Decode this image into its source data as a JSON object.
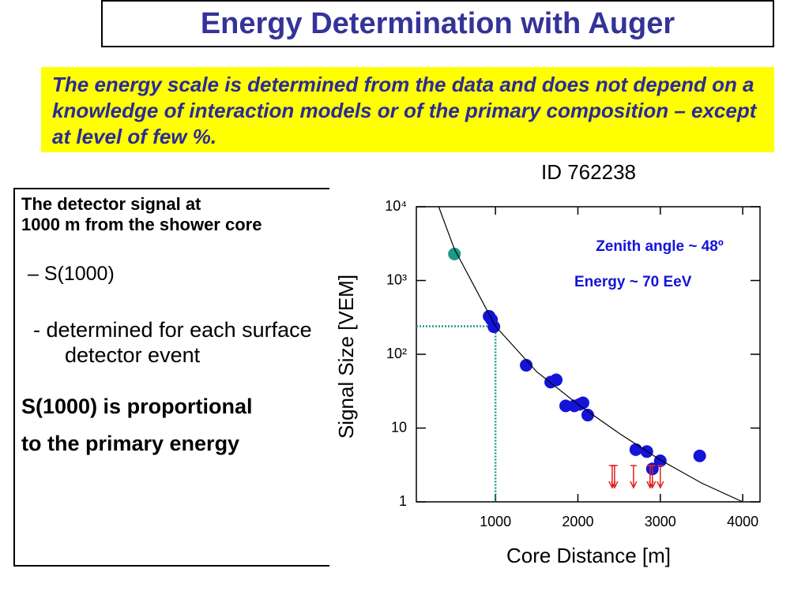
{
  "title": "Energy Determination with Auger",
  "highlight": "The energy scale is determined from the data and does not depend on a knowledge of interaction models or of the primary composition – except at level of few %.",
  "detector_box": {
    "items": [
      "The detector signal at",
      "1000 m from the shower core",
      "– S(1000)",
      "-  determined for each surface detector event",
      "S(1000) is proportional",
      "to the primary energy"
    ]
  },
  "chart_data": {
    "type": "scatter",
    "title": "ID 762238",
    "x_label": "Core Distance [m]",
    "y_label": "Signal Size [VEM]",
    "annotations": [
      "Zenith angle ~ 48º",
      "Energy ~ 70 EeV"
    ],
    "xlim": [
      40,
      4210
    ],
    "xticks": [
      1000,
      2000,
      3000,
      4000
    ],
    "ylim": [
      1,
      10000
    ],
    "ylog": true,
    "yticks": [
      {
        "value": 10000,
        "label": "10⁴"
      },
      {
        "value": 1000,
        "label": "10³"
      },
      {
        "value": 100,
        "label": "10²"
      },
      10,
      1
    ],
    "series": [
      {
        "color": "#1a9a8a",
        "marker": "circle",
        "x": [
          502
        ],
        "values": [
          2290
        ]
      },
      {
        "color": "#1414d8",
        "marker": "circle",
        "x": [
          923,
          952,
          981,
          1373,
          1670,
          1737,
          1852,
          1957,
          2024,
          2062,
          2120,
          2703,
          2837,
          2904,
          3000,
          3478
        ],
        "values": [
          327,
          295,
          236,
          71,
          42,
          45,
          20,
          20,
          21,
          22,
          15,
          5.1,
          4.8,
          2.8,
          3.6,
          4.2
        ]
      },
      {
        "color": "#e02020",
        "marker": "arrow",
        "x": [
          2416,
          2445,
          2675,
          2876,
          2904,
          3000
        ],
        "values": [
          3.1,
          3.1,
          3.1,
          3.1,
          3.1,
          3.1
        ]
      },
      {
        "color": "#000000",
        "marker": "line",
        "x": [
          311,
          500,
          1000,
          1500,
          2000,
          2500,
          3000,
          3500,
          4000
        ],
        "values": [
          10000,
          2700,
          240,
          58,
          21,
          8.5,
          3.7,
          1.8,
          1
        ]
      }
    ],
    "marker_lines": {
      "x": 1000,
      "y": 240,
      "color": "#1a9a8a"
    }
  }
}
